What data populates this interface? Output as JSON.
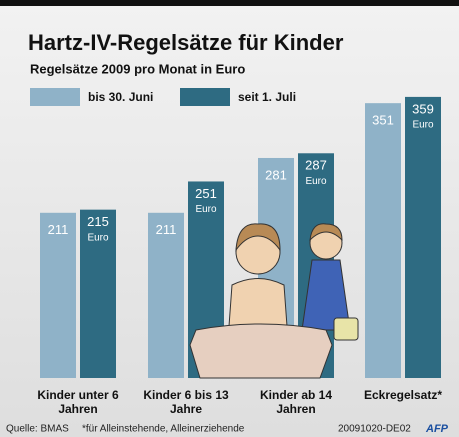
{
  "chart_data": {
    "type": "bar",
    "title": "Hartz-IV-Regelsätze für Kinder",
    "subtitle": "Regelsätze 2009 pro Monat in Euro",
    "categories": [
      "Kinder unter 6 Jahren",
      "Kinder 6 bis 13 Jahre",
      "Kinder ab 14 Jahren",
      "Eckregelsatz*"
    ],
    "series": [
      {
        "name": "bis 30. Juni",
        "color": "#8fb2c8",
        "values": [
          211,
          211,
          281,
          351
        ]
      },
      {
        "name": "seit 1. Juli",
        "color": "#2e6b82",
        "values": [
          215,
          251,
          287,
          359
        ]
      }
    ],
    "unit_label": "Euro",
    "source": "Quelle: BMAS",
    "footnote": "*für Alleinstehende, Alleinerziehende",
    "code": "20091020-DE02",
    "agency": "AFP"
  }
}
